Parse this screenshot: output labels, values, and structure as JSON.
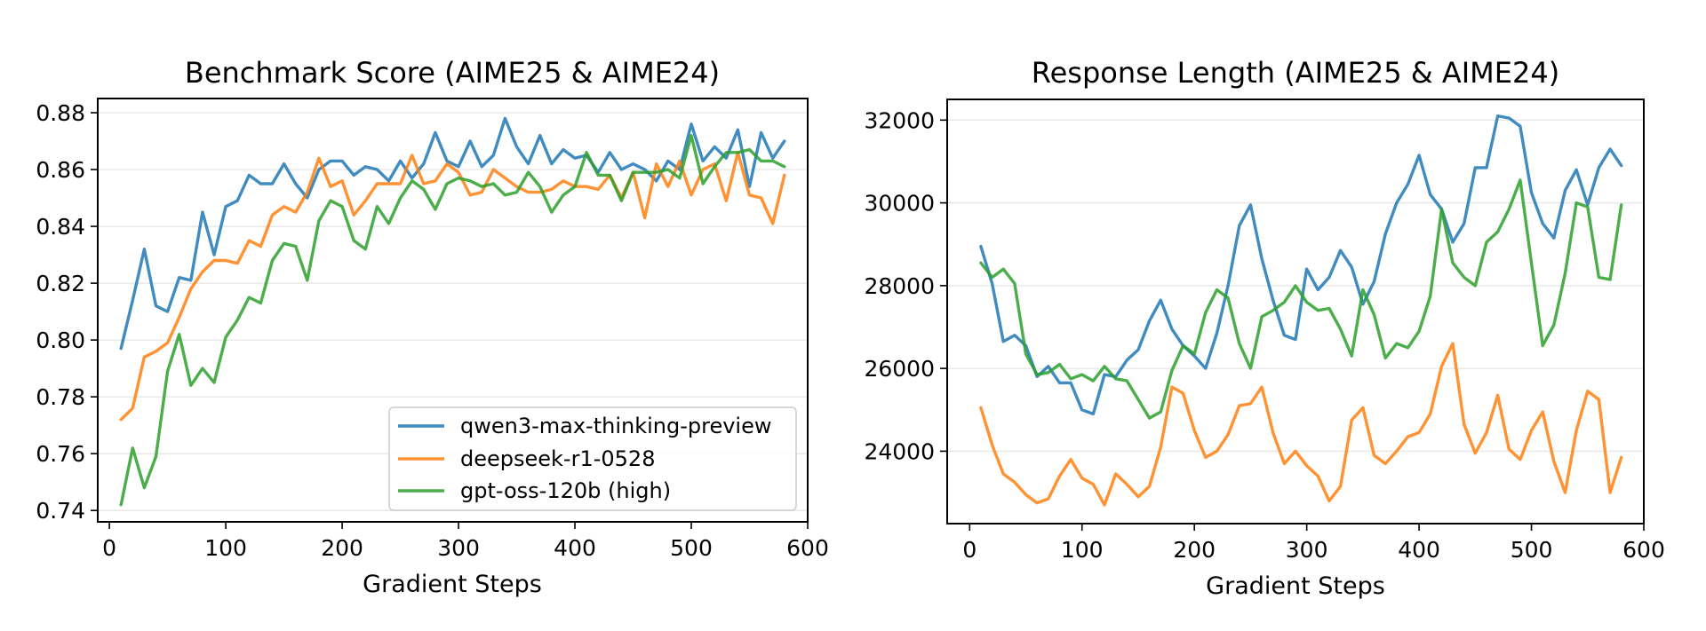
{
  "colors": {
    "qwen": "#1f77b4",
    "deepseek": "#ff7f0e",
    "gptoss": "#2ca02c"
  },
  "chart_data": [
    {
      "type": "line",
      "title": "Benchmark Score (AIME25 & AIME24)",
      "xlabel": "Gradient Steps",
      "ylabel": "",
      "xlim": [
        -10,
        600
      ],
      "ylim": [
        0.736,
        0.885
      ],
      "xticks": [
        0,
        100,
        200,
        300,
        400,
        500,
        600
      ],
      "yticks": [
        0.74,
        0.76,
        0.78,
        0.8,
        0.82,
        0.84,
        0.86,
        0.88
      ],
      "ytick_labels": [
        "0.74",
        "0.76",
        "0.78",
        "0.80",
        "0.82",
        "0.84",
        "0.86",
        "0.88"
      ],
      "grid": "horizontal",
      "legend": "lower-right",
      "x": [
        10,
        20,
        30,
        40,
        50,
        60,
        70,
        80,
        90,
        100,
        110,
        120,
        130,
        140,
        150,
        160,
        170,
        180,
        190,
        200,
        210,
        220,
        230,
        240,
        250,
        260,
        270,
        280,
        290,
        300,
        310,
        320,
        330,
        340,
        350,
        360,
        370,
        380,
        390,
        400,
        410,
        420,
        430,
        440,
        450,
        460,
        470,
        480,
        490,
        500,
        510,
        520,
        530,
        540,
        550,
        560,
        570,
        580
      ],
      "series": [
        {
          "name": "qwen3-max-thinking-preview",
          "color_key": "qwen",
          "values": [
            0.797,
            0.814,
            0.832,
            0.812,
            0.81,
            0.822,
            0.821,
            0.845,
            0.83,
            0.847,
            0.849,
            0.858,
            0.855,
            0.855,
            0.862,
            0.855,
            0.85,
            0.86,
            0.863,
            0.863,
            0.858,
            0.861,
            0.86,
            0.856,
            0.863,
            0.857,
            0.862,
            0.873,
            0.863,
            0.861,
            0.87,
            0.861,
            0.865,
            0.878,
            0.868,
            0.862,
            0.872,
            0.862,
            0.867,
            0.864,
            0.865,
            0.859,
            0.866,
            0.86,
            0.862,
            0.86,
            0.856,
            0.863,
            0.86,
            0.876,
            0.863,
            0.868,
            0.864,
            0.874,
            0.854,
            0.873,
            0.864,
            0.87
          ]
        },
        {
          "name": "deepseek-r1-0528",
          "color_key": "deepseek",
          "values": [
            0.772,
            0.776,
            0.794,
            0.796,
            0.799,
            0.808,
            0.818,
            0.824,
            0.828,
            0.828,
            0.827,
            0.835,
            0.833,
            0.844,
            0.847,
            0.845,
            0.852,
            0.864,
            0.854,
            0.856,
            0.844,
            0.849,
            0.855,
            0.855,
            0.855,
            0.865,
            0.855,
            0.856,
            0.862,
            0.859,
            0.851,
            0.852,
            0.86,
            0.857,
            0.854,
            0.852,
            0.852,
            0.853,
            0.856,
            0.854,
            0.854,
            0.853,
            0.858,
            0.85,
            0.859,
            0.843,
            0.862,
            0.854,
            0.863,
            0.851,
            0.86,
            0.862,
            0.849,
            0.866,
            0.851,
            0.85,
            0.841,
            0.858
          ]
        },
        {
          "name": "gpt-oss-120b (high)",
          "color_key": "gptoss",
          "values": [
            0.742,
            0.762,
            0.748,
            0.759,
            0.789,
            0.802,
            0.784,
            0.79,
            0.785,
            0.801,
            0.807,
            0.815,
            0.813,
            0.828,
            0.834,
            0.833,
            0.821,
            0.842,
            0.849,
            0.847,
            0.835,
            0.832,
            0.847,
            0.841,
            0.85,
            0.856,
            0.853,
            0.846,
            0.855,
            0.857,
            0.856,
            0.854,
            0.855,
            0.851,
            0.852,
            0.859,
            0.854,
            0.845,
            0.851,
            0.854,
            0.866,
            0.858,
            0.858,
            0.849,
            0.859,
            0.859,
            0.859,
            0.86,
            0.857,
            0.872,
            0.855,
            0.861,
            0.866,
            0.866,
            0.867,
            0.863,
            0.863,
            0.861
          ]
        }
      ]
    },
    {
      "type": "line",
      "title": "Response Length (AIME25 & AIME24)",
      "xlabel": "Gradient Steps",
      "ylabel": "",
      "xlim": [
        -20,
        600
      ],
      "ylim": [
        22250,
        32500
      ],
      "xticks": [
        0,
        100,
        200,
        300,
        400,
        500,
        600
      ],
      "yticks": [
        24000,
        26000,
        28000,
        30000,
        32000
      ],
      "ytick_labels": [
        "24000",
        "26000",
        "28000",
        "30000",
        "32000"
      ],
      "grid": "horizontal",
      "legend": "none",
      "x": [
        10,
        20,
        30,
        40,
        50,
        60,
        70,
        80,
        90,
        100,
        110,
        120,
        130,
        140,
        150,
        160,
        170,
        180,
        190,
        200,
        210,
        220,
        230,
        240,
        250,
        260,
        270,
        280,
        290,
        300,
        310,
        320,
        330,
        340,
        350,
        360,
        370,
        380,
        390,
        400,
        410,
        420,
        430,
        440,
        450,
        460,
        470,
        480,
        490,
        500,
        510,
        520,
        530,
        540,
        550,
        560,
        570,
        580
      ],
      "series": [
        {
          "name": "qwen3-max-thinking-preview",
          "color_key": "qwen",
          "values": [
            28950,
            28050,
            26650,
            26800,
            26550,
            25800,
            26050,
            25650,
            25650,
            25000,
            24900,
            25850,
            25800,
            26200,
            26450,
            27150,
            27650,
            26950,
            26550,
            26300,
            26000,
            26850,
            28000,
            29450,
            29950,
            28650,
            27650,
            26800,
            26700,
            28400,
            27900,
            28200,
            28850,
            28450,
            27550,
            28100,
            29250,
            30000,
            30450,
            31150,
            30200,
            29850,
            29050,
            29500,
            30850,
            30850,
            32100,
            32050,
            31850,
            30250,
            29500,
            29150,
            30300,
            30800,
            29950,
            30850,
            31300,
            30900
          ]
        },
        {
          "name": "deepseek-r1-0528",
          "color_key": "deepseek",
          "values": [
            25050,
            24150,
            23450,
            23250,
            22950,
            22750,
            22850,
            23400,
            23800,
            23350,
            23200,
            22700,
            23450,
            23200,
            22900,
            23150,
            24100,
            25550,
            25400,
            24500,
            23850,
            24000,
            24400,
            25100,
            25150,
            25550,
            24450,
            23700,
            24000,
            23650,
            23400,
            22800,
            23150,
            24750,
            25050,
            23900,
            23700,
            24000,
            24350,
            24450,
            24900,
            26050,
            26600,
            24650,
            23950,
            24450,
            25350,
            24050,
            23800,
            24500,
            24950,
            23750,
            23000,
            24500,
            25450,
            25250,
            23000,
            23850
          ]
        },
        {
          "name": "gpt-oss-120b (high)",
          "color_key": "gptoss",
          "values": [
            28550,
            28200,
            28400,
            28050,
            26350,
            25850,
            25900,
            26100,
            25750,
            25850,
            25700,
            26050,
            25750,
            25700,
            25250,
            24800,
            24950,
            25950,
            26550,
            26350,
            27350,
            27900,
            27700,
            26600,
            26000,
            27250,
            27400,
            27600,
            28000,
            27600,
            27400,
            27450,
            26950,
            26300,
            27900,
            27300,
            26250,
            26600,
            26500,
            26900,
            27750,
            29850,
            28550,
            28200,
            28000,
            29050,
            29300,
            29850,
            30550,
            28550,
            26550,
            27050,
            28300,
            30000,
            29900,
            28200,
            28150,
            29950
          ]
        }
      ]
    }
  ]
}
